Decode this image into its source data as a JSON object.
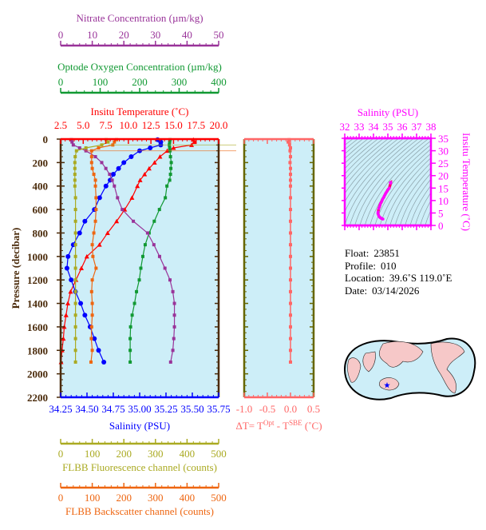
{
  "info": {
    "float_label": "Float:",
    "float_value": "23851",
    "profile_label": "Profile:",
    "profile_value": "010",
    "location_label": "Location:",
    "location_value": "39.6˚S  119.0˚E",
    "date_label": "Date:",
    "date_value": "03/14/2026"
  },
  "colors": {
    "temperature": "#ff0000",
    "salinity": "#0000ff",
    "oxygen": "#119933",
    "nitrate": "#993399",
    "fluorescence": "#aaaa22",
    "backscatter": "#ee6611",
    "delta_t": "#ff6666",
    "ts": "#ff00ff",
    "plot_bg": "#cdeef8",
    "frame": "#4a2a0a"
  },
  "chart_data": [
    {
      "type": "line",
      "ylabel": "Pressure (decibar)",
      "ylim": [
        2200,
        0
      ],
      "yticks": [
        0,
        200,
        400,
        600,
        800,
        1000,
        1200,
        1400,
        1600,
        1800,
        2000,
        2200
      ],
      "axes": {
        "nitrate": {
          "title": "Nitrate Concentration (µm/kg)",
          "range": [
            0,
            50
          ],
          "ticks": [
            "0",
            "10",
            "20",
            "30",
            "40",
            "50"
          ]
        },
        "oxygen": {
          "title": "Optode Oxygen Concentration (µm/kg)",
          "range": [
            0,
            400
          ],
          "ticks": [
            "0",
            "100",
            "200",
            "300",
            "400"
          ]
        },
        "temperature": {
          "title": "Insitu Temperature (˚C)",
          "range": [
            2.5,
            20
          ],
          "ticks": [
            "2.5",
            "5.0",
            "7.5",
            "10.0",
            "12.5",
            "15.0",
            "17.5",
            "20.0"
          ]
        },
        "salinity": {
          "title": "Salinity (PSU)",
          "range": [
            34.25,
            35.75
          ],
          "ticks": [
            "34.25",
            "34.50",
            "34.75",
            "35.00",
            "35.25",
            "35.50",
            "35.75"
          ]
        },
        "fluorescence": {
          "title": "FLBB Fluorescence channel (counts)",
          "range": [
            0,
            500
          ],
          "ticks": [
            "0",
            "100",
            "200",
            "300",
            "400",
            "500"
          ]
        },
        "backscatter": {
          "title": "FLBB Backscatter channel (counts)",
          "range": [
            0,
            500
          ],
          "ticks": [
            "0",
            "100",
            "200",
            "300",
            "400",
            "500"
          ]
        }
      },
      "pressure": [
        5,
        25,
        50,
        75,
        100,
        150,
        200,
        250,
        300,
        350,
        400,
        500,
        600,
        700,
        800,
        900,
        1000,
        1100,
        1200,
        1300,
        1400,
        1500,
        1600,
        1700,
        1800,
        1900
      ],
      "series": [
        {
          "key": "temperature",
          "marker": "triangle",
          "values": [
            17.2,
            17.3,
            17.0,
            15.0,
            14.3,
            13.5,
            12.9,
            12.3,
            11.8,
            11.3,
            11.0,
            10.4,
            9.6,
            8.7,
            7.7,
            6.8,
            5.4,
            4.8,
            4.2,
            3.6,
            3.3,
            3.1,
            2.9,
            2.8,
            2.65,
            2.55
          ]
        },
        {
          "key": "salinity",
          "marker": "circle",
          "values": [
            35.17,
            35.2,
            35.2,
            35.1,
            35.0,
            34.92,
            34.85,
            34.8,
            34.75,
            34.72,
            34.68,
            34.62,
            34.57,
            34.48,
            34.43,
            34.37,
            34.32,
            34.31,
            34.35,
            34.39,
            34.44,
            34.48,
            34.53,
            34.57,
            34.61,
            34.66
          ]
        },
        {
          "key": "oxygen",
          "marker": "square",
          "values": [
            277,
            276,
            275,
            276,
            277,
            278,
            280,
            279,
            278,
            276,
            269,
            265,
            250,
            237,
            224,
            214,
            208,
            203,
            199,
            192,
            187,
            181,
            177,
            176,
            176,
            176
          ]
        },
        {
          "key": "nitrate",
          "marker": "square",
          "values": [
            3.4,
            3.6,
            4,
            6,
            8,
            11,
            13,
            14.3,
            15.5,
            16.3,
            17,
            18,
            19.5,
            23,
            27.5,
            29.5,
            31.3,
            33,
            34.6,
            35.5,
            36,
            36,
            36,
            35.8,
            35.5,
            34.8
          ]
        },
        {
          "key": "fluorescence",
          "marker": "square",
          "values": [
            144,
            150,
            130,
            80,
            50,
            46,
            45,
            45,
            45,
            45,
            45,
            47,
            47,
            47,
            47,
            47,
            47,
            47,
            47,
            47,
            47,
            47,
            47,
            47,
            47,
            47
          ]
        },
        {
          "key": "backscatter",
          "marker": "square",
          "values": [
            177,
            170,
            165,
            120,
            98,
            98,
            98,
            100,
            105,
            110,
            110,
            112,
            112,
            110,
            105,
            100,
            102,
            112,
            100,
            98,
            100,
            100,
            98,
            97,
            100,
            96
          ]
        }
      ]
    },
    {
      "type": "line",
      "xlabel": "ΔT= T^Opt - T^SBE (˚C)",
      "xlabel_parts": {
        "a": "ΔT= T",
        "b": "Opt",
        "c": " - T",
        "d": "SBE",
        "e": " (˚C)"
      },
      "xlim": [
        -1.0,
        0.5
      ],
      "xticks": [
        "-1.0",
        "-0.5",
        "0.0",
        "0.5"
      ],
      "ylim": [
        2200,
        0
      ],
      "pressure": [
        5,
        25,
        50,
        75,
        100,
        150,
        200,
        250,
        300,
        350,
        400,
        500,
        600,
        700,
        800,
        900,
        1000,
        1100,
        1200,
        1300,
        1400,
        1500,
        1600,
        1700,
        1800,
        1900
      ],
      "values": [
        -0.03,
        -0.05,
        -0.02,
        0.0,
        -0.01,
        0.0,
        -0.01,
        0.0,
        0.0,
        0.0,
        0.0,
        0.0,
        0.0,
        0.0,
        0.0,
        0.0,
        0.0,
        0.0,
        0.0,
        0.0,
        0.0,
        0.0,
        0.0,
        0.0,
        0.0,
        0.0
      ]
    },
    {
      "type": "scatter",
      "xlabel": "Salinity (PSU)",
      "ylabel": "Insitu Temperature (˚C)",
      "xlim": [
        32,
        38
      ],
      "ylim": [
        0,
        35
      ],
      "xticks": [
        "32",
        "33",
        "34",
        "35",
        "36",
        "37",
        "38"
      ],
      "yticks": [
        "0",
        "5",
        "10",
        "15",
        "20",
        "25",
        "30",
        "35"
      ],
      "salinity": [
        35.17,
        35.2,
        35.2,
        35.1,
        35.0,
        34.92,
        34.85,
        34.8,
        34.75,
        34.72,
        34.68,
        34.62,
        34.57,
        34.48,
        34.43,
        34.37,
        34.32,
        34.31,
        34.35,
        34.39,
        34.44,
        34.48,
        34.53,
        34.57,
        34.61,
        34.66
      ],
      "temperature": [
        17.2,
        17.3,
        17.0,
        15.0,
        14.3,
        13.5,
        12.9,
        12.3,
        11.8,
        11.3,
        11.0,
        10.4,
        9.6,
        8.7,
        7.7,
        6.8,
        5.4,
        4.8,
        4.2,
        3.6,
        3.3,
        3.1,
        2.9,
        2.8,
        2.65,
        2.55
      ]
    }
  ],
  "map": {
    "marker": "float-location-star",
    "marker_color": "#0000ff",
    "land_color": "#f6c8c8",
    "ocean_color": "#cdeef8"
  }
}
